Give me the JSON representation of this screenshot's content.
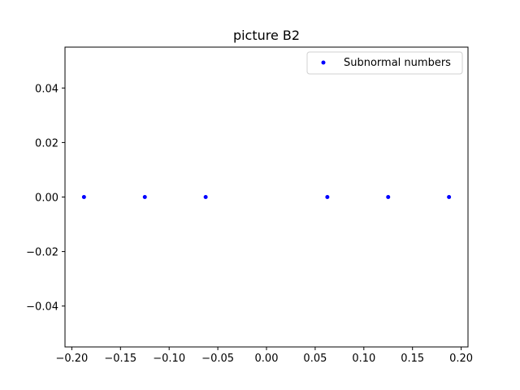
{
  "chart_data": {
    "type": "scatter",
    "title": "picture B2",
    "xlabel": "",
    "ylabel": "",
    "xlim": [
      -0.207,
      0.207
    ],
    "ylim": [
      -0.055,
      0.055
    ],
    "x_ticks": [
      -0.2,
      -0.15,
      -0.1,
      -0.05,
      0.0,
      0.05,
      0.1,
      0.15,
      0.2
    ],
    "x_tick_labels": [
      "−0.20",
      "−0.15",
      "−0.10",
      "−0.05",
      "0.00",
      "0.05",
      "0.10",
      "0.15",
      "0.20"
    ],
    "y_ticks": [
      0.04,
      0.02,
      0.0,
      -0.02,
      -0.04
    ],
    "y_tick_labels": [
      "0.04",
      "0.02",
      "0.00",
      "−0.02",
      "−0.04"
    ],
    "grid": false,
    "legend": {
      "position": "top-right",
      "entries": [
        "Subnormal numbers"
      ]
    },
    "series": [
      {
        "name": "Subnormal numbers",
        "color": "#0000ff",
        "marker": "dot",
        "points": [
          {
            "x": -0.1875,
            "y": 0.0
          },
          {
            "x": -0.125,
            "y": 0.0
          },
          {
            "x": -0.0625,
            "y": 0.0
          },
          {
            "x": 0.0625,
            "y": 0.0
          },
          {
            "x": 0.125,
            "y": 0.0
          },
          {
            "x": 0.1875,
            "y": 0.0
          }
        ]
      }
    ]
  }
}
